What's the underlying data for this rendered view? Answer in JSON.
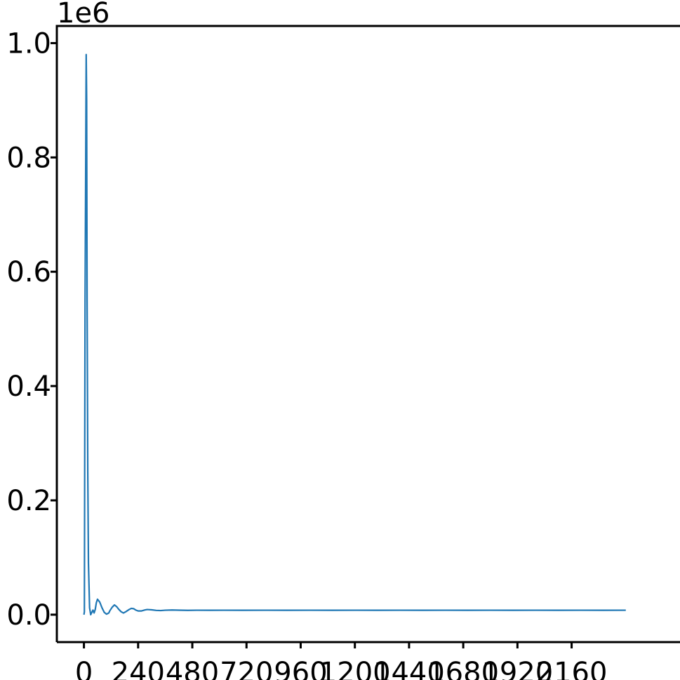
{
  "chart_data": {
    "type": "line",
    "title": "",
    "xlabel": "",
    "ylabel": "",
    "offset_label": "1e6",
    "xlim": [
      -120,
      2640
    ],
    "ylim": [
      -0.048,
      1.03
    ],
    "x_ticks": [
      0,
      240,
      480,
      720,
      960,
      1200,
      1440,
      1680,
      1920,
      2160
    ],
    "x_tick_labels": [
      "0",
      "240",
      "480",
      "720",
      "960",
      "1200",
      "1440",
      "1680",
      "1920",
      "2160"
    ],
    "y_ticks": [
      0.0,
      0.2,
      0.4,
      0.6,
      0.8,
      1.0
    ],
    "y_tick_labels": [
      "0.0",
      "0.2",
      "0.4",
      "0.6",
      "0.8",
      "1.0"
    ],
    "grid": false,
    "colors": {
      "line": "#1f77b4",
      "axes": "#000000",
      "background": "#ffffff"
    },
    "series": [
      {
        "x": [
          0,
          2,
          5,
          8,
          10,
          12,
          14,
          17,
          20,
          25,
          30,
          35,
          40,
          45,
          50,
          55,
          60,
          70,
          80,
          90,
          100,
          110,
          115,
          125,
          135,
          145,
          155,
          165,
          175,
          185,
          200,
          210,
          220,
          230,
          240,
          255,
          270,
          280,
          300,
          320,
          340,
          360,
          390,
          420,
          460,
          500,
          560,
          620,
          700,
          800,
          900,
          1000,
          1100,
          1200,
          1300,
          1400,
          1500,
          1600,
          1700,
          1800,
          1900,
          2000,
          2100,
          2200,
          2300,
          2400
        ],
        "y": [
          0.0,
          0.005,
          0.55,
          0.8,
          0.98,
          0.9,
          0.55,
          0.25,
          0.09,
          0.012,
          0.0,
          0.004,
          0.008,
          0.003,
          0.009,
          0.021,
          0.027,
          0.022,
          0.012,
          0.004,
          0.001,
          0.003,
          0.007,
          0.013,
          0.017,
          0.014,
          0.009,
          0.005,
          0.003,
          0.005,
          0.009,
          0.011,
          0.0105,
          0.008,
          0.0065,
          0.0065,
          0.0082,
          0.009,
          0.0085,
          0.0075,
          0.0072,
          0.0078,
          0.0082,
          0.0079,
          0.0076,
          0.0078,
          0.0077,
          0.0078,
          0.0077,
          0.0078,
          0.0077,
          0.0078,
          0.0077,
          0.0078,
          0.0077,
          0.0078,
          0.0077,
          0.0078,
          0.0077,
          0.0078,
          0.0077,
          0.0078,
          0.0077,
          0.0078,
          0.0077,
          0.0078
        ]
      }
    ]
  }
}
